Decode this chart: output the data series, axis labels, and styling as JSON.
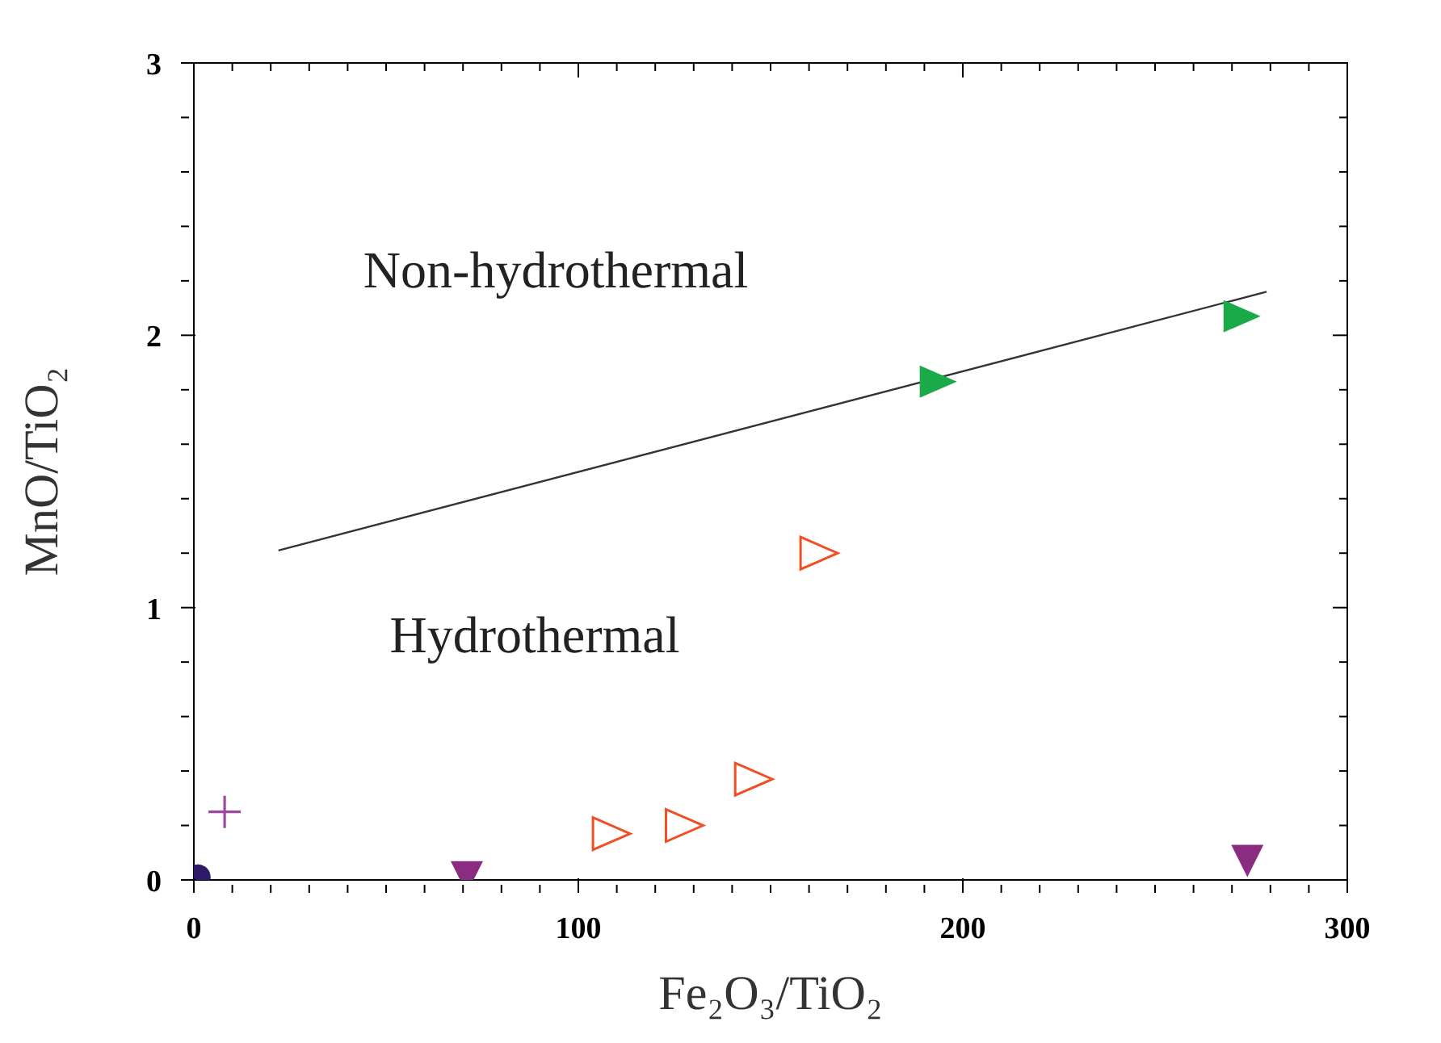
{
  "chart_data": {
    "type": "scatter",
    "xlabel": "Fe₂O₃/TiO₂",
    "ylabel": "MnO/TiO₂",
    "xlim": [
      0,
      300
    ],
    "ylim": [
      0,
      3
    ],
    "xticks": [
      0,
      {
        "value": 10,
        "label": null
      },
      {
        "value": 20,
        "label": null
      },
      {
        "value": 30,
        "label": null
      },
      {
        "value": 40,
        "label": null
      },
      {
        "value": 50,
        "label": null
      },
      {
        "value": 60,
        "label": null
      },
      {
        "value": 70,
        "label": null
      },
      {
        "value": 80,
        "label": null
      },
      {
        "value": 90,
        "label": null
      },
      100,
      {
        "value": 110,
        "label": null
      },
      {
        "value": 120,
        "label": null
      },
      {
        "value": 130,
        "label": null
      },
      {
        "value": 140,
        "label": null
      },
      {
        "value": 150,
        "label": null
      },
      {
        "value": 160,
        "label": null
      },
      {
        "value": 170,
        "label": null
      },
      {
        "value": 180,
        "label": null
      },
      {
        "value": 190,
        "label": null
      },
      200,
      {
        "value": 210,
        "label": null
      },
      {
        "value": 220,
        "label": null
      },
      {
        "value": 230,
        "label": null
      },
      {
        "value": 240,
        "label": null
      },
      {
        "value": 250,
        "label": null
      },
      {
        "value": 260,
        "label": null
      },
      {
        "value": 270,
        "label": null
      },
      {
        "value": 280,
        "label": null
      },
      {
        "value": 290,
        "label": null
      },
      300
    ],
    "yticks": [
      0,
      {
        "value": 0.2,
        "label": null
      },
      {
        "value": 0.4,
        "label": null
      },
      {
        "value": 0.6,
        "label": null
      },
      {
        "value": 0.8,
        "label": null
      },
      1,
      {
        "value": 1.2,
        "label": null
      },
      {
        "value": 1.4,
        "label": null
      },
      {
        "value": 1.6,
        "label": null
      },
      {
        "value": 1.8,
        "label": null
      },
      2,
      {
        "value": 2.2,
        "label": null
      },
      {
        "value": 2.4,
        "label": null
      },
      {
        "value": 2.6,
        "label": null
      },
      {
        "value": 2.8,
        "label": null
      },
      3
    ],
    "grid": false,
    "legend": false,
    "annotations": [
      "Non-hydrothermal",
      "Hydrothermal"
    ],
    "series": [
      {
        "type": "line",
        "color": "#333333",
        "x": [
          22,
          279
        ],
        "values": [
          1.21,
          2.16
        ],
        "marker": "none"
      },
      {
        "color": "#1aaa4a",
        "marker": "triangle-right-filled",
        "x": [
          193,
          272
        ],
        "values": [
          1.83,
          2.07
        ]
      },
      {
        "color": "#f04e23",
        "marker": "triangle-right-open",
        "x": [
          108,
          127,
          145,
          162
        ],
        "values": [
          0.17,
          0.2,
          0.37,
          1.2
        ]
      },
      {
        "color": "#8b2c83",
        "marker": "triangle-down-filled",
        "x": [
          71,
          274
        ],
        "values": [
          0.01,
          0.07
        ]
      },
      {
        "color": "#9b4aa0",
        "marker": "cross",
        "x": [
          8
        ],
        "values": [
          0.25
        ]
      },
      {
        "color": "#2e1a6b",
        "marker": "circle",
        "x": [
          1
        ],
        "values": [
          0.01
        ]
      }
    ]
  }
}
